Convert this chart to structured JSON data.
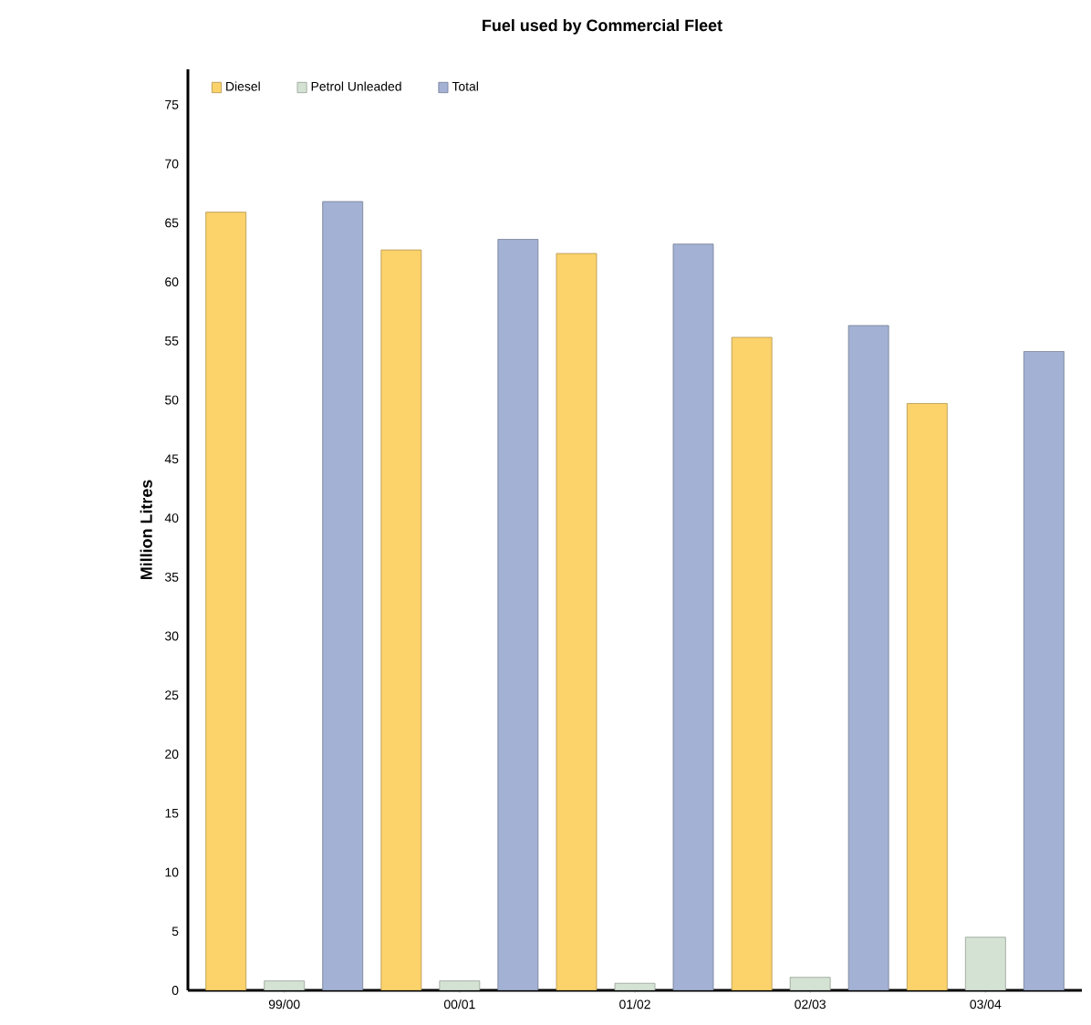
{
  "chart_data": {
    "type": "bar",
    "title": "Fuel used by Commercial Fleet",
    "ylabel": "Million Litres",
    "categories": [
      "99/00",
      "00/01",
      "01/02",
      "02/03",
      "03/04"
    ],
    "series": [
      {
        "name": "Diesel",
        "color": "#fcd26a",
        "values": [
          65.9,
          62.7,
          62.4,
          55.3,
          49.7
        ]
      },
      {
        "name": "Petrol Unleaded",
        "color": "#d4e2d4",
        "values": [
          0.8,
          0.8,
          0.6,
          1.1,
          4.5
        ]
      },
      {
        "name": "Total",
        "color": "#a3b1d4",
        "values": [
          66.8,
          63.6,
          63.2,
          56.3,
          54.1
        ]
      }
    ],
    "ylim": [
      0,
      78
    ],
    "yticks": [
      0,
      5,
      10,
      15,
      20,
      25,
      30,
      35,
      40,
      45,
      50,
      55,
      60,
      65,
      70,
      75
    ],
    "grid": false,
    "legend": "top left"
  }
}
